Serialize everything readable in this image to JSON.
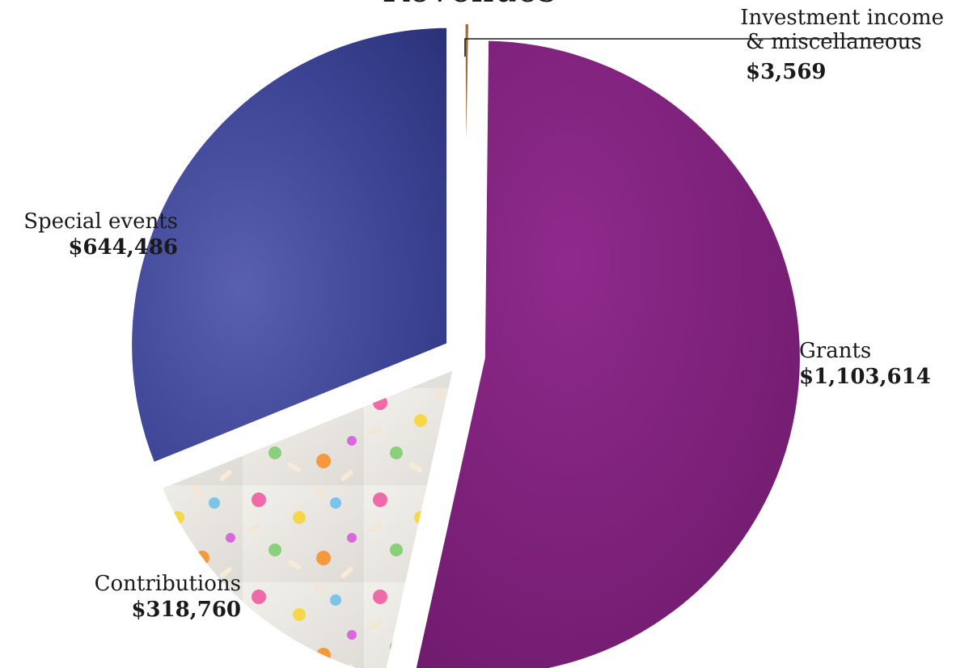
{
  "chart_data": {
    "type": "pie",
    "title": "Revenues",
    "slices": [
      {
        "label": "Investment income\n& miscellaneous",
        "value": 3569,
        "value_label": "$3,569",
        "color": "#9c6a3e",
        "texture": "wood"
      },
      {
        "label": "Grants",
        "value": 1103614,
        "value_label": "$1,103,614",
        "color": "#80207f",
        "texture": "fabric"
      },
      {
        "label": "Contributions",
        "value": 318760,
        "value_label": "$318,760",
        "color": "#ece9e4",
        "texture": "sprinkles"
      },
      {
        "label": "Special events",
        "value": 644486,
        "value_label": "$644,486",
        "color": "#39408f",
        "texture": "bokeh"
      }
    ],
    "start_angle_deg": 0,
    "direction": "clockwise",
    "exploded": true,
    "legend": "none"
  }
}
